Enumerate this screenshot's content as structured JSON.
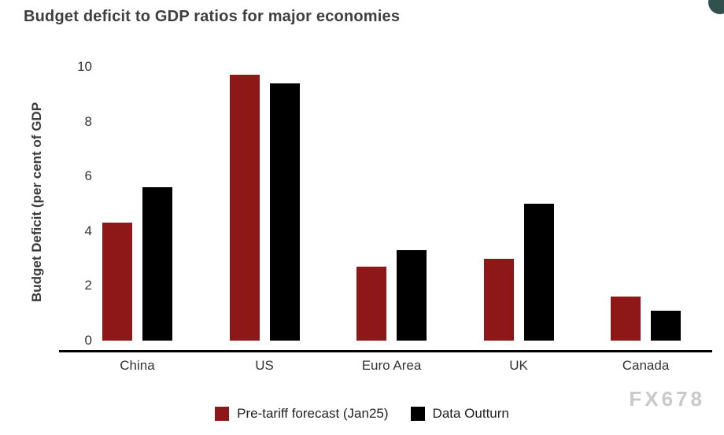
{
  "title": "Budget deficit to GDP ratios for major economies",
  "watermark": "FX678",
  "chart_data": {
    "type": "bar",
    "title": "Budget deficit to GDP ratios for major economies",
    "categories": [
      "China",
      "US",
      "Euro Area",
      "UK",
      "Canada"
    ],
    "series": [
      {
        "name": "Pre-tariff forecast (Jan25)",
        "color": "#8e1717",
        "values": [
          4.3,
          9.7,
          2.7,
          3.0,
          1.6
        ]
      },
      {
        "name": "Data Outturn",
        "color": "#000000",
        "values": [
          5.6,
          9.4,
          3.3,
          5.0,
          1.1
        ]
      }
    ],
    "xlabel": "",
    "ylabel": "Budget Deficit (per cent of GDP",
    "ylim": [
      0,
      10
    ],
    "yticks": [
      0,
      2,
      4,
      6,
      8,
      10
    ],
    "grid": false,
    "legend_position": "bottom"
  }
}
